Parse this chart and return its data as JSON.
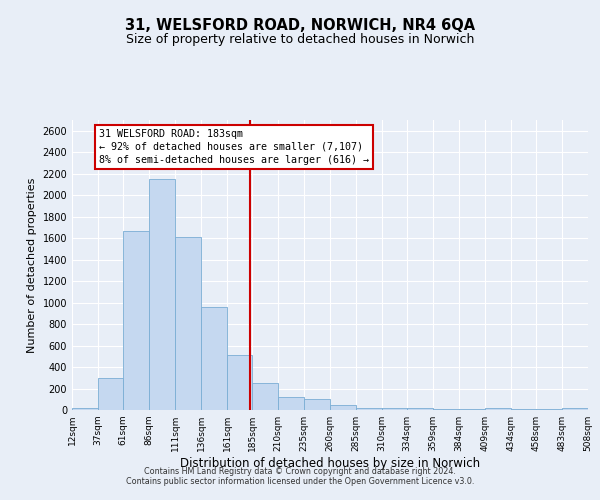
{
  "title": "31, WELSFORD ROAD, NORWICH, NR4 6QA",
  "subtitle": "Size of property relative to detached houses in Norwich",
  "xlabel": "Distribution of detached houses by size in Norwich",
  "ylabel": "Number of detached properties",
  "bar_color": "#c5d8f0",
  "bar_edge_color": "#7aadd4",
  "background_color": "#e8eef7",
  "grid_color": "#ffffff",
  "bin_labels": [
    "12sqm",
    "37sqm",
    "61sqm",
    "86sqm",
    "111sqm",
    "136sqm",
    "161sqm",
    "185sqm",
    "210sqm",
    "235sqm",
    "260sqm",
    "285sqm",
    "310sqm",
    "334sqm",
    "359sqm",
    "384sqm",
    "409sqm",
    "434sqm",
    "458sqm",
    "483sqm",
    "508sqm"
  ],
  "bin_edges": [
    12,
    37,
    61,
    86,
    111,
    136,
    161,
    185,
    210,
    235,
    260,
    285,
    310,
    334,
    359,
    384,
    409,
    434,
    458,
    483,
    508
  ],
  "bar_heights": [
    20,
    300,
    1670,
    2150,
    1610,
    960,
    510,
    250,
    125,
    100,
    50,
    20,
    15,
    20,
    5,
    5,
    20,
    5,
    5,
    20,
    0
  ],
  "property_size": 183,
  "property_label": "31 WELSFORD ROAD: 183sqm",
  "annotation_line1": "← 92% of detached houses are smaller (7,107)",
  "annotation_line2": "8% of semi-detached houses are larger (616) →",
  "vline_color": "#cc0000",
  "annotation_box_facecolor": "#ffffff",
  "annotation_box_edgecolor": "#cc0000",
  "ylim": [
    0,
    2700
  ],
  "yticks": [
    0,
    200,
    400,
    600,
    800,
    1000,
    1200,
    1400,
    1600,
    1800,
    2000,
    2200,
    2400,
    2600
  ],
  "title_fontsize": 10.5,
  "subtitle_fontsize": 9,
  "footer1": "Contains HM Land Registry data © Crown copyright and database right 2024.",
  "footer2": "Contains public sector information licensed under the Open Government Licence v3.0."
}
